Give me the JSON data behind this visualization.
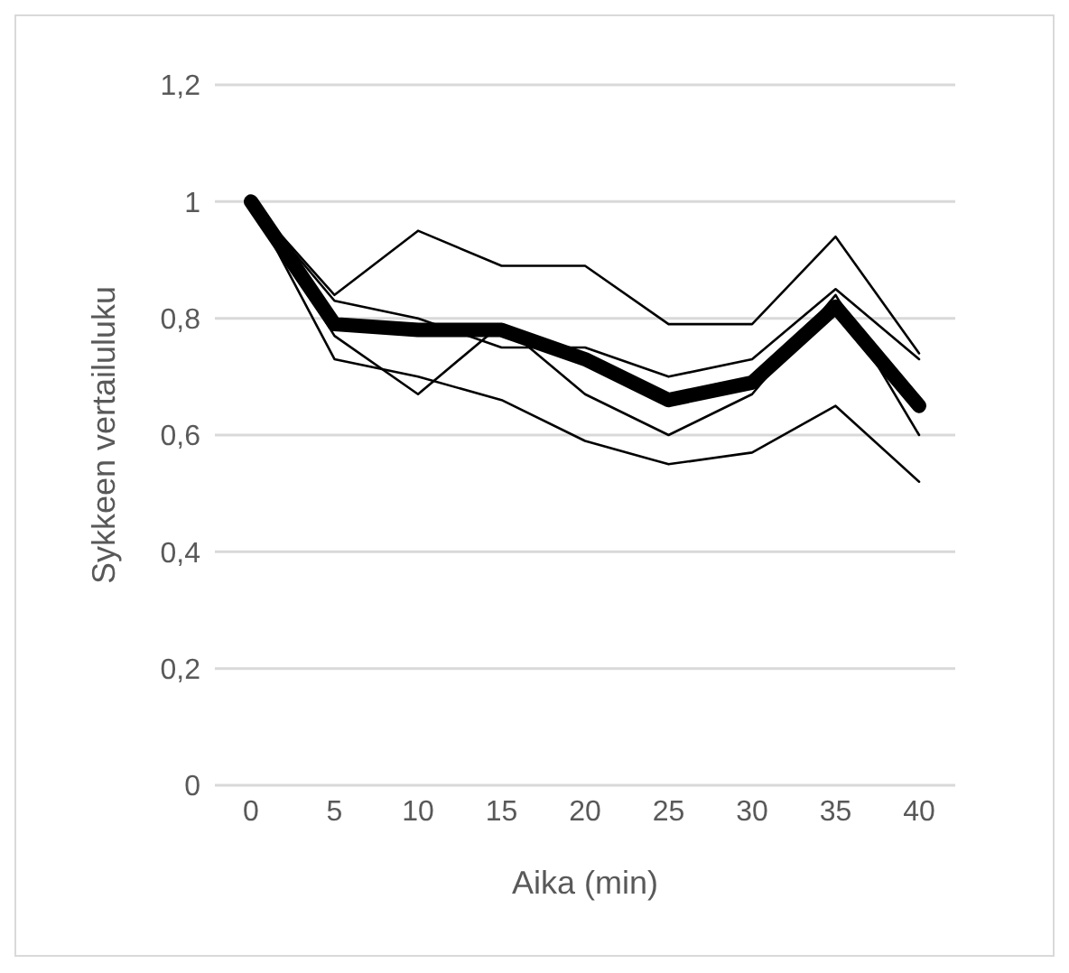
{
  "chart_data": {
    "type": "line",
    "xlabel": "Aika (min)",
    "ylabel": "Sykkeen vertailuluku",
    "categories": [
      "0",
      "5",
      "10",
      "15",
      "20",
      "25",
      "30",
      "35",
      "40"
    ],
    "ylim": [
      0,
      1.2
    ],
    "yticks": [
      {
        "value": 0,
        "label": "0"
      },
      {
        "value": 0.2,
        "label": "0,2"
      },
      {
        "value": 0.4,
        "label": "0,4"
      },
      {
        "value": 0.6,
        "label": "0,6"
      },
      {
        "value": 0.8,
        "label": "0,8"
      },
      {
        "value": 1,
        "label": "1"
      },
      {
        "value": 1.2,
        "label": "1,2"
      }
    ],
    "grid": "y",
    "legend": false,
    "marker": "none",
    "line_style": "solid",
    "series": [
      {
        "color": "#000000",
        "values": [
          1,
          0.84,
          0.95,
          0.89,
          0.89,
          0.79,
          0.79,
          0.94,
          0.74
        ]
      },
      {
        "color": "#000000",
        "values": [
          1,
          0.83,
          0.8,
          0.75,
          0.75,
          0.7,
          0.73,
          0.85,
          0.73
        ]
      },
      {
        "color": "#000000",
        "values": [
          1,
          0.77,
          0.67,
          0.79,
          0.67,
          0.6,
          0.67,
          0.84,
          0.6
        ]
      },
      {
        "color": "#000000",
        "values": [
          1,
          0.73,
          0.7,
          0.66,
          0.59,
          0.55,
          0.57,
          0.65,
          0.52
        ]
      },
      {
        "color": "#000000",
        "values": [
          1,
          0.79,
          0.78,
          0.78,
          0.73,
          0.66,
          0.69,
          0.82,
          0.65
        ]
      }
    ]
  }
}
